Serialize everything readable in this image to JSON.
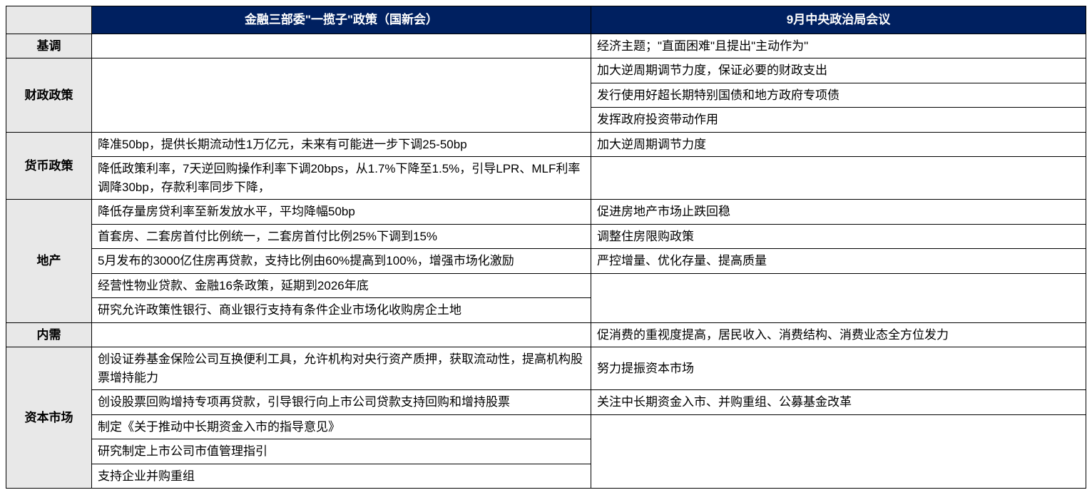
{
  "colors": {
    "header_bg": "#002060",
    "header_text": "#ffffff",
    "category_bg": "#e8e8e8",
    "border": "#000000",
    "content_bg": "#ffffff"
  },
  "fonts": {
    "family": "Microsoft YaHei",
    "header_size": 17,
    "content_size": 17,
    "header_weight": "bold",
    "category_weight": "bold"
  },
  "layout": {
    "col_widths": [
      "120px",
      "700px",
      "auto"
    ],
    "border_width": 1.5
  },
  "headers": {
    "left": "金融三部委\"一揽子\"政策（国新会）",
    "right": "9月中央政治局会议"
  },
  "categories": {
    "tone": "基调",
    "fiscal": "财政政策",
    "monetary": "货币政策",
    "realestate": "地产",
    "demand": "内需",
    "capital": "资本市场"
  },
  "rows": {
    "tone_right": "经济主题；\"直面困难\"且提出\"主动作为\"",
    "fiscal_right_1": "加大逆周期调节力度，保证必要的财政支出",
    "fiscal_right_2": "发行使用好超长期特别国债和地方政府专项债",
    "fiscal_right_3": "发挥政府投资带动作用",
    "monetary_left_1": "降准50bp，提供长期流动性1万亿元，未来有可能进一步下调25-50bp",
    "monetary_right_1": "加大逆周期调节力度",
    "monetary_left_2": "降低政策利率，7天逆回购操作利率下调20bps，从1.7%下降至1.5%，引导LPR、MLF利率调降30bp，存款利率同步下降，",
    "realestate_left_1": "降低存量房贷利率至新发放水平，平均降幅50bp",
    "realestate_right_1": "促进房地产市场止跌回稳",
    "realestate_left_2": "首套房、二套房首付比例统一，二套房首付比例25%下调到15%",
    "realestate_right_2": "调整住房限购政策",
    "realestate_left_3": "5月发布的3000亿住房再贷款，支持比例由60%提高到100%，增强市场化激励",
    "realestate_right_3": "严控增量、优化存量、提高质量",
    "realestate_left_4": "经营性物业贷款、金融16条政策，延期到2026年底",
    "realestate_left_5": "研究允许政策性银行、商业银行支持有条件企业市场化收购房企土地",
    "demand_right": "促消费的重视度提高，居民收入、消费结构、消费业态全方位发力",
    "capital_left_1": "创设证券基金保险公司互换便利工具，允许机构对央行资产质押，获取流动性，提高机构股票增持能力",
    "capital_right_1": "努力提振资本市场",
    "capital_left_2": "创设股票回购增持专项再贷款，引导银行向上市公司贷款支持回购和增持股票",
    "capital_right_2": "关注中长期资金入市、并购重组、公募基金改革",
    "capital_left_3": "制定《关于推动中长期资金入市的指导意见》",
    "capital_left_4": "研究制定上市公司市值管理指引",
    "capital_left_5": "支持企业并购重组"
  }
}
